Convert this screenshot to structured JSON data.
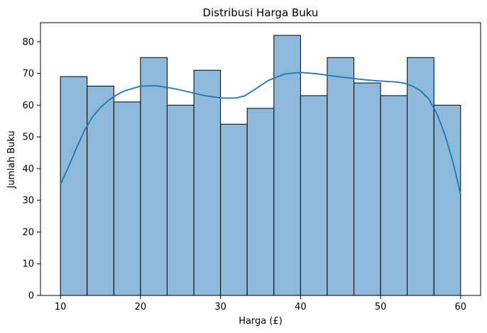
{
  "chart_data": {
    "type": "bar",
    "title": "Distribusi Harga Buku",
    "xlabel": "Harga (£)",
    "ylabel": "Jumlah Buku",
    "xlim": [
      7.5,
      62.5
    ],
    "ylim": [
      0,
      86
    ],
    "grid": false,
    "legend": "none",
    "x_ticks": [
      10,
      20,
      30,
      40,
      50,
      60
    ],
    "y_ticks": [
      0,
      10,
      20,
      30,
      40,
      50,
      60,
      70,
      80
    ],
    "bins": {
      "edges": [
        10,
        13.33,
        16.67,
        20,
        23.33,
        26.67,
        30,
        33.33,
        36.67,
        40,
        43.33,
        46.67,
        50,
        53.33,
        56.67,
        60
      ],
      "counts": [
        69,
        66,
        61,
        75,
        60,
        71,
        54,
        59,
        82,
        63,
        75,
        67,
        63,
        75,
        60
      ]
    },
    "kde": {
      "x": [
        10,
        11,
        12,
        13,
        14,
        15,
        16,
        17,
        18,
        20,
        22,
        24,
        26,
        28,
        30,
        31,
        32,
        33,
        34,
        36,
        38,
        40,
        42,
        44,
        46,
        48,
        50,
        52,
        53,
        54,
        55,
        56,
        57,
        58,
        59,
        60
      ],
      "y": [
        35,
        40.5,
        46.5,
        52,
        56.3,
        59.3,
        61.5,
        63.2,
        64.5,
        66,
        66.1,
        65.3,
        64.2,
        63,
        62.3,
        62.2,
        62.3,
        62.9,
        64.5,
        67.8,
        69.8,
        70.3,
        69.9,
        69.2,
        68.6,
        68,
        67.6,
        67.3,
        66.9,
        66,
        64.5,
        62,
        57.5,
        51,
        42.5,
        32
      ]
    },
    "colors": {
      "bar_fill": "#8db9db",
      "bar_edge": "#000000",
      "kde_line": "#1f77b4"
    }
  }
}
